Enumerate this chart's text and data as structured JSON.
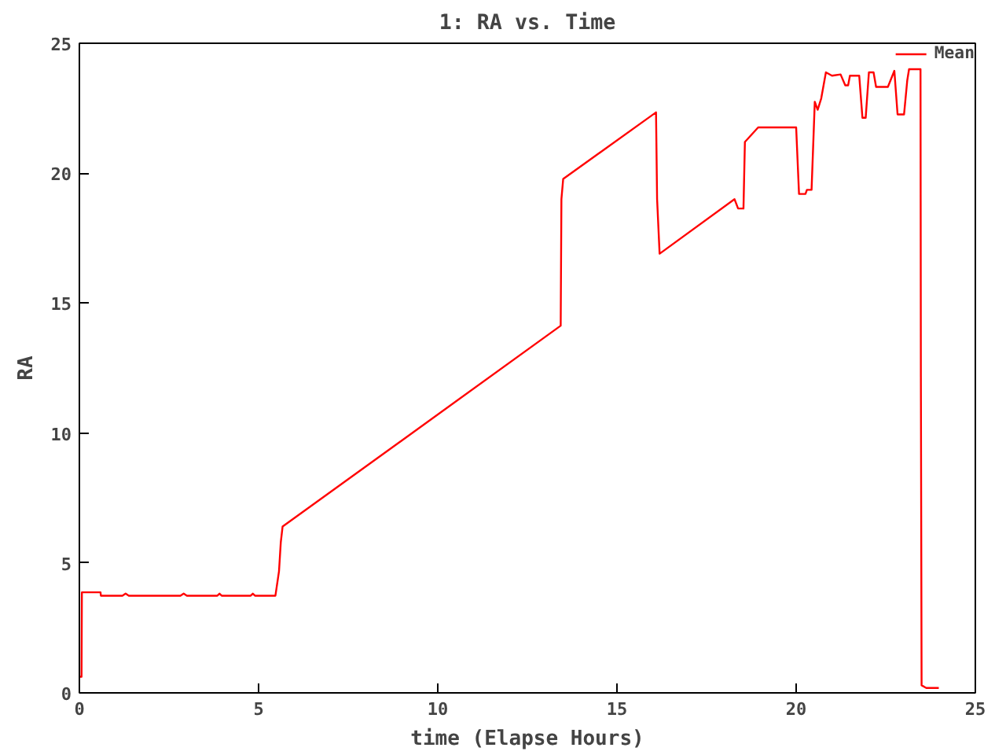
{
  "chart_data": {
    "type": "line",
    "title": "1: RA vs. Time",
    "xlabel": "time (Elapse Hours)",
    "ylabel": "RA",
    "xlim": [
      0,
      25
    ],
    "ylim": [
      0,
      25
    ],
    "xticks": [
      0,
      5,
      10,
      15,
      20,
      25
    ],
    "yticks": [
      0,
      5,
      10,
      15,
      20,
      25
    ],
    "grid": false,
    "legend": "top right",
    "series": [
      {
        "name": "Mean",
        "color": "#ff0000",
        "x": [
          0,
          0.06,
          0.07,
          0.15,
          0.59,
          0.6,
          1.2,
          1.29,
          1.38,
          2.82,
          2.91,
          3.0,
          3.85,
          3.91,
          3.97,
          4.78,
          4.84,
          4.9,
          5.47,
          5.57,
          5.62,
          5.67,
          13.43,
          13.45,
          13.5,
          16.09,
          16.12,
          16.19,
          18.28,
          18.38,
          18.53,
          18.57,
          18.94,
          20.0,
          20.08,
          20.26,
          20.3,
          20.43,
          20.52,
          20.6,
          20.7,
          20.83,
          21.0,
          21.24,
          21.37,
          21.45,
          21.5,
          21.76,
          21.85,
          21.94,
          22.03,
          22.16,
          22.23,
          22.56,
          22.74,
          22.83,
          23.01,
          23.1,
          23.15,
          23.47,
          23.48,
          23.5,
          23.63,
          23.98
        ],
        "values": [
          0.62,
          0.62,
          3.87,
          3.87,
          3.87,
          3.74,
          3.74,
          3.82,
          3.74,
          3.74,
          3.82,
          3.74,
          3.74,
          3.82,
          3.74,
          3.74,
          3.82,
          3.74,
          3.74,
          4.68,
          5.8,
          6.4,
          14.13,
          19.0,
          19.78,
          22.34,
          19.0,
          16.9,
          19.0,
          18.64,
          18.64,
          21.2,
          21.76,
          21.76,
          19.2,
          19.2,
          19.36,
          19.36,
          22.75,
          22.44,
          22.88,
          23.88,
          23.75,
          23.8,
          23.38,
          23.38,
          23.75,
          23.75,
          22.13,
          22.13,
          23.88,
          23.88,
          23.32,
          23.32,
          23.94,
          22.26,
          22.26,
          23.57,
          24.0,
          24.0,
          12.16,
          0.29,
          0.19,
          0.19
        ]
      }
    ]
  }
}
